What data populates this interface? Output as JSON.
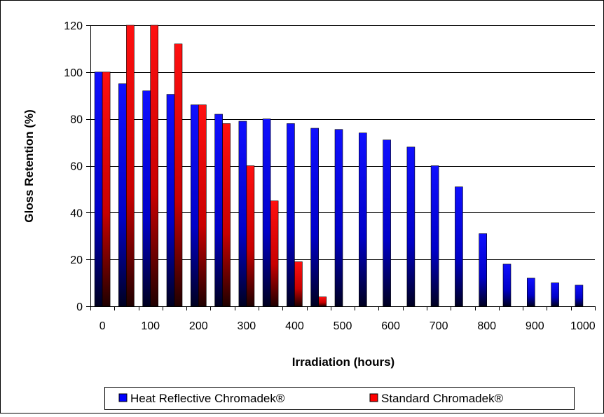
{
  "chart_data": {
    "type": "bar",
    "title": "",
    "xlabel": "Irradiation (hours)",
    "ylabel": "Gloss Retention (%)",
    "ylim": [
      0,
      120
    ],
    "yticks": [
      "0",
      "20",
      "40",
      "60",
      "80",
      "100",
      "120"
    ],
    "categories": [
      "0",
      "50",
      "100",
      "150",
      "200",
      "250",
      "300",
      "350",
      "400",
      "450",
      "500",
      "550",
      "600",
      "650",
      "700",
      "750",
      "800",
      "850",
      "900",
      "950",
      "1000"
    ],
    "xtick_labels": [
      "0",
      "100",
      "200",
      "300",
      "400",
      "500",
      "600",
      "700",
      "800",
      "900",
      "1000"
    ],
    "grid": "horizontal",
    "legend_position": "bottom",
    "series": [
      {
        "name": "Heat Reflective Chromadek®",
        "color": "#0000ff",
        "values": [
          100,
          95,
          92,
          90.5,
          86,
          82,
          79,
          80,
          78,
          76,
          75.5,
          74,
          71,
          68,
          60,
          51,
          31,
          18,
          12,
          10,
          9
        ]
      },
      {
        "name": "Standard Chromadek®",
        "color": "#ff0000",
        "values": [
          100,
          120,
          120,
          112,
          86,
          78,
          60,
          45,
          19,
          4,
          null,
          null,
          null,
          null,
          null,
          null,
          null,
          null,
          null,
          null,
          null
        ]
      }
    ]
  }
}
